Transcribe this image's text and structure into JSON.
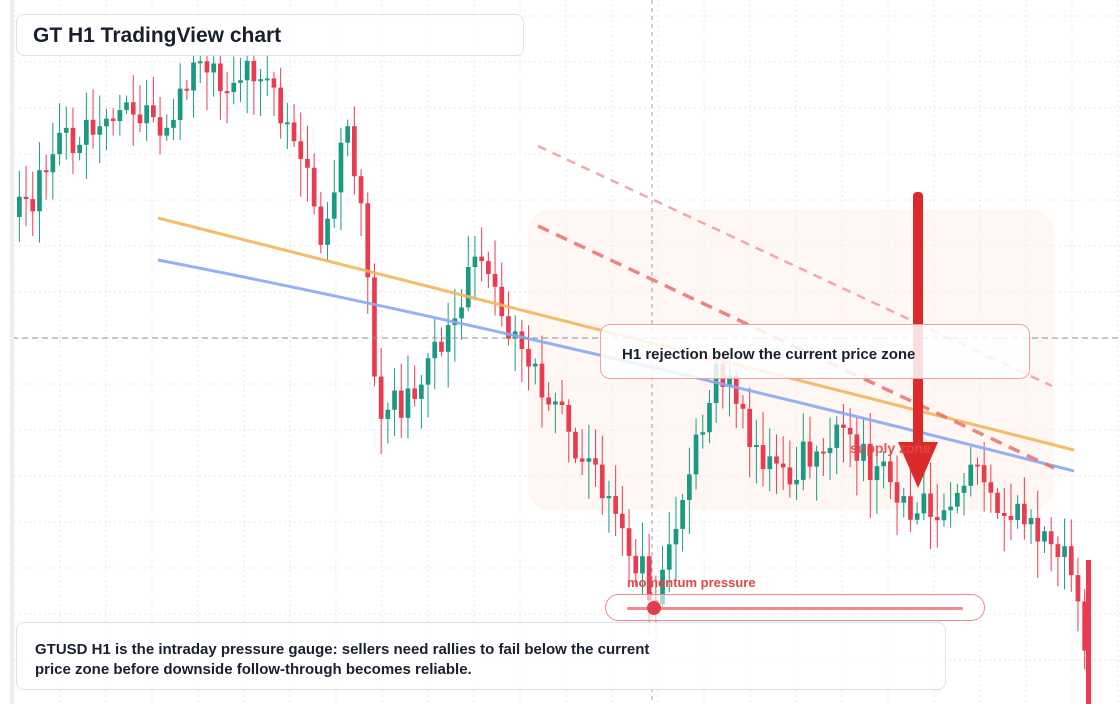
{
  "title": "GT H1 TradingView chart",
  "annotations": {
    "rejection_label": "H1 rejection below the current price zone",
    "supply_label": "supply zone",
    "momentum_label": "momentum pressure",
    "momentum_level": 0.08,
    "note": "GTUSD H1 is the intraday pressure gauge: sellers need rallies to fail below the current price zone before downside follow-through becomes reliable."
  },
  "colors": {
    "bull": "#1a9a80",
    "bear": "#ea3c50",
    "grid": "#e6e9ee",
    "ma_orange": "#f6b55a",
    "ma_blue": "#8aa8f4",
    "arrow": "#dc2a2a",
    "zone_fill": "#fde9e0"
  },
  "chart_data": {
    "type": "candlestick",
    "series_seed": 73,
    "candles_count": 160,
    "overlays": [
      "orange moving average",
      "blue moving average",
      "dashed red trendlines",
      "supply zone",
      "bearish arrow",
      "current price crosshair"
    ],
    "grid": true
  }
}
